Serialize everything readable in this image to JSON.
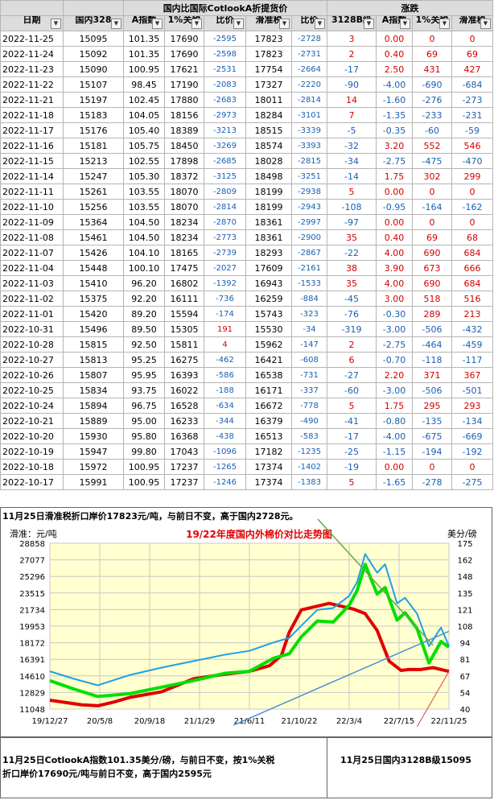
{
  "table": {
    "group_headers": {
      "middle": "国内比国际CotlookA折提货价",
      "right": "涨跌"
    },
    "columns": [
      "日期",
      "国内328",
      "A指数",
      "1%关税",
      "比价",
      "滑准税",
      "比价",
      "3128B级",
      "A指数",
      "1%关税",
      "滑准税"
    ],
    "filter_glyph": "▼",
    "rows": [
      [
        "2022-11-25",
        "15095",
        "101.35",
        "17690",
        "-2595",
        "17823",
        "-2728",
        "3",
        "0.00",
        "0",
        "0"
      ],
      [
        "2022-11-24",
        "15092",
        "101.35",
        "17690",
        "-2598",
        "17823",
        "-2731",
        "2",
        "0.40",
        "69",
        "69"
      ],
      [
        "2022-11-23",
        "15090",
        "100.95",
        "17621",
        "-2531",
        "17754",
        "-2664",
        "-17",
        "2.50",
        "431",
        "427"
      ],
      [
        "2022-11-22",
        "15107",
        "98.45",
        "17190",
        "-2083",
        "17327",
        "-2220",
        "-90",
        "-4.00",
        "-690",
        "-684"
      ],
      [
        "2022-11-21",
        "15197",
        "102.45",
        "17880",
        "-2683",
        "18011",
        "-2814",
        "14",
        "-1.60",
        "-276",
        "-273"
      ],
      [
        "2022-11-18",
        "15183",
        "104.05",
        "18156",
        "-2973",
        "18284",
        "-3101",
        "7",
        "-1.35",
        "-233",
        "-231"
      ],
      [
        "2022-11-17",
        "15176",
        "105.40",
        "18389",
        "-3213",
        "18515",
        "-3339",
        "-5",
        "-0.35",
        "-60",
        "-59"
      ],
      [
        "2022-11-16",
        "15181",
        "105.75",
        "18450",
        "-3269",
        "18574",
        "-3393",
        "-32",
        "3.20",
        "552",
        "546"
      ],
      [
        "2022-11-15",
        "15213",
        "102.55",
        "17898",
        "-2685",
        "18028",
        "-2815",
        "-34",
        "-2.75",
        "-475",
        "-470"
      ],
      [
        "2022-11-14",
        "15247",
        "105.30",
        "18372",
        "-3125",
        "18498",
        "-3251",
        "-14",
        "1.75",
        "302",
        "299"
      ],
      [
        "2022-11-11",
        "15261",
        "103.55",
        "18070",
        "-2809",
        "18199",
        "-2938",
        "5",
        "0.00",
        "0",
        "0"
      ],
      [
        "2022-11-10",
        "15256",
        "103.55",
        "18070",
        "-2814",
        "18199",
        "-2943",
        "-108",
        "-0.95",
        "-164",
        "-162"
      ],
      [
        "2022-11-09",
        "15364",
        "104.50",
        "18234",
        "-2870",
        "18361",
        "-2997",
        "-97",
        "0.00",
        "0",
        "0"
      ],
      [
        "2022-11-08",
        "15461",
        "104.50",
        "18234",
        "-2773",
        "18361",
        "-2900",
        "35",
        "0.40",
        "69",
        "68"
      ],
      [
        "2022-11-07",
        "15426",
        "104.10",
        "18165",
        "-2739",
        "18293",
        "-2867",
        "-22",
        "4.00",
        "690",
        "684"
      ],
      [
        "2022-11-04",
        "15448",
        "100.10",
        "17475",
        "-2027",
        "17609",
        "-2161",
        "38",
        "3.90",
        "673",
        "666"
      ],
      [
        "2022-11-03",
        "15410",
        "96.20",
        "16802",
        "-1392",
        "16943",
        "-1533",
        "35",
        "4.00",
        "690",
        "684"
      ],
      [
        "2022-11-02",
        "15375",
        "92.20",
        "16111",
        "-736",
        "16259",
        "-884",
        "-45",
        "3.00",
        "518",
        "516"
      ],
      [
        "2022-11-01",
        "15420",
        "89.20",
        "15594",
        "-174",
        "15743",
        "-323",
        "-76",
        "-0.30",
        "289",
        "213"
      ],
      [
        "2022-10-31",
        "15496",
        "89.50",
        "15305",
        "191",
        "15530",
        "-34",
        "-319",
        "-3.00",
        "-506",
        "-432"
      ],
      [
        "2022-10-28",
        "15815",
        "92.50",
        "15811",
        "4",
        "15962",
        "-147",
        "2",
        "-2.75",
        "-464",
        "-459"
      ],
      [
        "2022-10-27",
        "15813",
        "95.25",
        "16275",
        "-462",
        "16421",
        "-608",
        "6",
        "-0.70",
        "-118",
        "-117"
      ],
      [
        "2022-10-26",
        "15807",
        "95.95",
        "16393",
        "-586",
        "16538",
        "-731",
        "-27",
        "2.20",
        "371",
        "367"
      ],
      [
        "2022-10-25",
        "15834",
        "93.75",
        "16022",
        "-188",
        "16171",
        "-337",
        "-60",
        "-3.00",
        "-506",
        "-501"
      ],
      [
        "2022-10-24",
        "15894",
        "96.75",
        "16528",
        "-634",
        "16672",
        "-778",
        "5",
        "1.75",
        "295",
        "293"
      ],
      [
        "2022-10-21",
        "15889",
        "95.00",
        "16233",
        "-344",
        "16379",
        "-490",
        "-41",
        "-0.80",
        "-135",
        "-134"
      ],
      [
        "2022-10-20",
        "15930",
        "95.80",
        "16368",
        "-438",
        "16513",
        "-583",
        "-17",
        "-4.00",
        "-675",
        "-669"
      ],
      [
        "2022-10-19",
        "15947",
        "99.80",
        "17043",
        "-1096",
        "17182",
        "-1235",
        "-25",
        "-1.15",
        "-194",
        "-192"
      ],
      [
        "2022-10-18",
        "15972",
        "100.95",
        "17237",
        "-1265",
        "17374",
        "-1402",
        "-19",
        "0.00",
        "0",
        "0"
      ],
      [
        "2022-10-17",
        "15991",
        "100.95",
        "17237",
        "-1246",
        "17374",
        "-1383",
        "5",
        "-1.65",
        "-278",
        "-275"
      ]
    ]
  },
  "notes": {
    "top": "11月25日滑准税折口岸价17823元/吨，与前日不变，高于国内2728元。",
    "bottom_left": "11月25日CotlookA指数101.35美分/磅，与前日不变，按1%关税折口岸价17690元/吨与前日不变，高于国内2595元",
    "bottom_right": "11月25日国内3128B级15095"
  },
  "chart_data": {
    "type": "line",
    "title": "19/22年度国内外棉价对比走势图",
    "ylabel_left": "滑准：元/吨",
    "ylabel_right": "美分/磅",
    "ylim_left": [
      11048,
      28858
    ],
    "ylim_right": [
      40,
      175
    ],
    "yticks_left": [
      "28858",
      "27077",
      "25296",
      "23515",
      "21734",
      "19953",
      "18172",
      "16391",
      "14610",
      "12829",
      "11048"
    ],
    "yticks_right": [
      "175",
      "162",
      "148",
      "135",
      "121",
      "108",
      "94",
      "81",
      "67",
      "54",
      "40"
    ],
    "xticks": [
      "19/12/27",
      "20/5/8",
      "20/9/18",
      "21/1/29",
      "21/6/11",
      "21/10/22",
      "22/3/4",
      "22/7/15",
      "22/11/25"
    ],
    "colors": {
      "domestic": "#e00000",
      "cotlook_a": "#1ea0e6",
      "tariff_1pct": "#00e000",
      "trend_blue": "#4f8fd6",
      "trend_green": "#66a84a",
      "grid": "#c8c8c8",
      "plot_bg": "#ffffd0"
    },
    "series": [
      {
        "name": "国内3128B级",
        "x": [
          0,
          0.08,
          0.12,
          0.16,
          0.2,
          0.28,
          0.36,
          0.44,
          0.5,
          0.55,
          0.58,
          0.6,
          0.63,
          0.66,
          0.7,
          0.73,
          0.76,
          0.79,
          0.82,
          0.85,
          0.88,
          0.9,
          0.93,
          0.96,
          1.0
        ],
        "values": [
          12000,
          11500,
          11400,
          11800,
          12300,
          12900,
          14300,
          14800,
          15100,
          15700,
          16800,
          19300,
          21700,
          22000,
          22400,
          22100,
          21800,
          21300,
          19500,
          16200,
          15200,
          15300,
          15300,
          15500,
          15095
        ]
      },
      {
        "name": "CotlookA 1%关税",
        "x": [
          0,
          0.06,
          0.12,
          0.2,
          0.28,
          0.36,
          0.44,
          0.5,
          0.56,
          0.6,
          0.63,
          0.67,
          0.71,
          0.75,
          0.77,
          0.79,
          0.82,
          0.84,
          0.87,
          0.89,
          0.92,
          0.95,
          0.98,
          1.0
        ],
        "values": [
          14100,
          13200,
          12400,
          12700,
          13400,
          14100,
          14900,
          15100,
          16500,
          17000,
          18800,
          20500,
          20400,
          22200,
          23800,
          26600,
          23400,
          24100,
          20600,
          21400,
          19700,
          16000,
          18300,
          17690
        ]
      },
      {
        "name": "CotlookA 滑准税",
        "x": [
          0,
          0.06,
          0.12,
          0.2,
          0.28,
          0.36,
          0.44,
          0.5,
          0.56,
          0.6,
          0.63,
          0.67,
          0.71,
          0.75,
          0.77,
          0.79,
          0.82,
          0.84,
          0.87,
          0.89,
          0.92,
          0.95,
          0.98,
          1.0
        ],
        "values": [
          15100,
          14300,
          13600,
          14700,
          15500,
          16200,
          16900,
          17300,
          18200,
          18700,
          20000,
          21700,
          21900,
          23200,
          24700,
          27700,
          25700,
          26600,
          22400,
          23000,
          21300,
          17800,
          19800,
          17823
        ]
      }
    ]
  }
}
